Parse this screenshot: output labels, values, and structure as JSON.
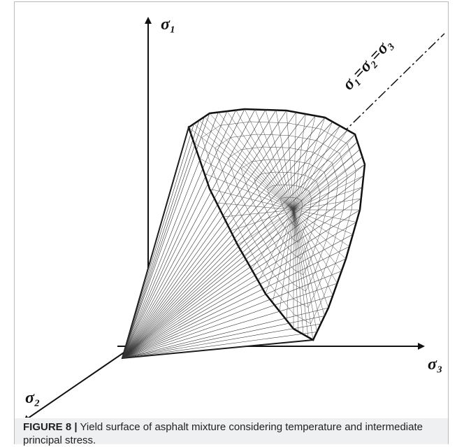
{
  "figure": {
    "labels": {
      "sigma1": "σ₁",
      "sigma2": "σ₂",
      "sigma3": "σ₃",
      "hydrostatic": "σ₁=σ₂=σ₃"
    }
  },
  "caption": {
    "label": "FIGURE 8 |",
    "text": "Yield surface of asphalt mixture considering temperature and intermediate principal stress."
  }
}
